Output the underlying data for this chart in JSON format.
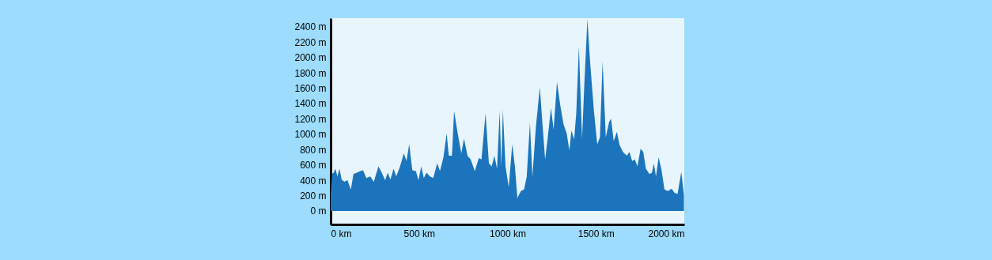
{
  "chart_data": {
    "type": "area",
    "x": [
      0,
      8,
      17,
      27,
      38,
      50,
      62,
      77,
      95,
      114,
      129,
      148,
      168,
      183,
      202,
      224,
      244,
      270,
      289,
      308,
      323,
      338,
      356,
      371,
      391,
      414,
      429,
      444,
      462,
      482,
      497,
      512,
      527,
      542,
      562,
      580,
      603,
      618,
      638,
      656,
      668,
      686,
      698,
      717,
      739,
      754,
      774,
      792,
      815,
      838,
      853,
      876,
      895,
      911,
      926,
      941,
      956,
      965,
      974,
      989,
      1007,
      1027,
      1042,
      1056,
      1076,
      1094,
      1109,
      1127,
      1141,
      1161,
      1183,
      1198,
      1213,
      1228,
      1246,
      1261,
      1280,
      1299,
      1317,
      1335,
      1350,
      1362,
      1377,
      1389,
      1404,
      1422,
      1434,
      1452,
      1467,
      1489,
      1508,
      1523,
      1538,
      1556,
      1575,
      1586,
      1601,
      1619,
      1634,
      1653,
      1675,
      1690,
      1705,
      1720,
      1735,
      1753,
      1768,
      1783,
      1803,
      1817,
      1828,
      1840,
      1855,
      1870,
      1888,
      1907,
      1929,
      1944,
      1962,
      1983,
      1998
    ],
    "series": [
      {
        "color": "#1c75bc",
        "values": [
          210,
          480,
          500,
          550,
          450,
          550,
          410,
          380,
          400,
          280,
          480,
          500,
          520,
          530,
          430,
          450,
          380,
          580,
          500,
          400,
          500,
          410,
          550,
          450,
          570,
          750,
          650,
          870,
          530,
          520,
          400,
          580,
          430,
          500,
          450,
          430,
          620,
          520,
          700,
          1010,
          720,
          720,
          1300,
          1030,
          750,
          940,
          720,
          670,
          520,
          690,
          670,
          1270,
          620,
          580,
          720,
          550,
          1300,
          580,
          1320,
          580,
          310,
          870,
          580,
          170,
          260,
          280,
          450,
          1150,
          450,
          1100,
          1610,
          1130,
          670,
          960,
          1340,
          1060,
          1680,
          1370,
          1130,
          1010,
          790,
          1050,
          930,
          1270,
          2140,
          940,
          1610,
          2500,
          1950,
          1300,
          870,
          960,
          1950,
          960,
          1160,
          1200,
          910,
          1030,
          860,
          770,
          720,
          770,
          650,
          670,
          580,
          810,
          770,
          550,
          480,
          500,
          620,
          450,
          700,
          550,
          280,
          260,
          290,
          240,
          220,
          510,
          210
        ]
      }
    ],
    "xlim": [
      0,
      2000
    ],
    "xticks": [
      {
        "value": 0,
        "label": "0 km"
      },
      {
        "value": 500,
        "label": "500 km"
      },
      {
        "value": 1000,
        "label": "1000 km"
      },
      {
        "value": 1500,
        "label": "1500 km"
      },
      {
        "value": 2000,
        "label": "2000 km"
      }
    ],
    "ylim": [
      -175,
      2510
    ],
    "yticks": [
      {
        "value": 0,
        "label": "0 m"
      },
      {
        "value": 200,
        "label": "200 m"
      },
      {
        "value": 400,
        "label": "400 m"
      },
      {
        "value": 600,
        "label": "600 m"
      },
      {
        "value": 800,
        "label": "800 m"
      },
      {
        "value": 1000,
        "label": "1000 m"
      },
      {
        "value": 1200,
        "label": "1200 m"
      },
      {
        "value": 1400,
        "label": "1400 m"
      },
      {
        "value": 1600,
        "label": "1600 m"
      },
      {
        "value": 1800,
        "label": "1800 m"
      },
      {
        "value": 2000,
        "label": "2000 m"
      },
      {
        "value": 2200,
        "label": "2200 m"
      },
      {
        "value": 2400,
        "label": "2400 m"
      }
    ]
  }
}
